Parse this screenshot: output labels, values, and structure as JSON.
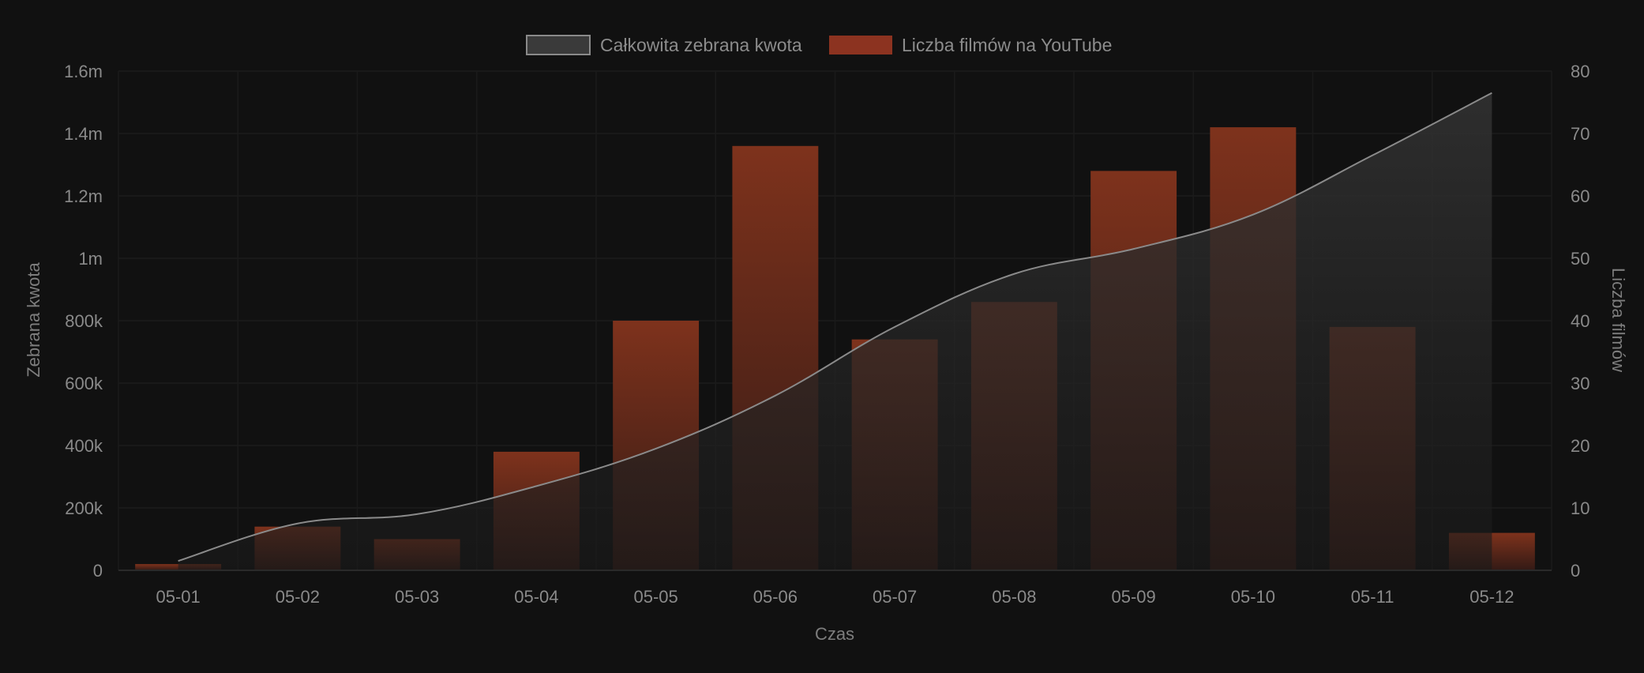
{
  "chart_data": {
    "type": "bar",
    "categories": [
      "05-01",
      "05-02",
      "05-03",
      "05-04",
      "05-05",
      "05-06",
      "05-07",
      "05-08",
      "05-09",
      "05-10",
      "05-11",
      "05-12"
    ],
    "xlabel": "Czas",
    "ylabel_left": "Zebrana kwota",
    "ylabel_right": "Liczba filmów",
    "y_left": {
      "min": 0,
      "max": 1600000,
      "ticks": [
        0,
        200000,
        400000,
        600000,
        800000,
        1000000,
        1200000,
        1400000,
        1600000
      ],
      "tick_labels": [
        "0",
        "200k",
        "400k",
        "600k",
        "800k",
        "1m",
        "1.2m",
        "1.4m",
        "1.6m"
      ]
    },
    "y_right": {
      "min": 0,
      "max": 80,
      "ticks": [
        0,
        10,
        20,
        30,
        40,
        50,
        60,
        70,
        80
      ],
      "tick_labels": [
        "0",
        "10",
        "20",
        "30",
        "40",
        "50",
        "60",
        "70",
        "80"
      ]
    },
    "series": [
      {
        "name": "Całkowita zebrana kwota",
        "type": "area",
        "axis": "left",
        "color": "#8a8a8a",
        "values": [
          30000,
          150000,
          180000,
          270000,
          390000,
          560000,
          780000,
          950000,
          1030000,
          1140000,
          1330000,
          1530000
        ]
      },
      {
        "name": "Liczba filmów na YouTube",
        "type": "bar",
        "axis": "right",
        "color": "#8c3320",
        "values": [
          1,
          7,
          5,
          19,
          40,
          68,
          37,
          43,
          64,
          71,
          39,
          6
        ]
      }
    ],
    "legend": "top-center",
    "grid": true
  }
}
